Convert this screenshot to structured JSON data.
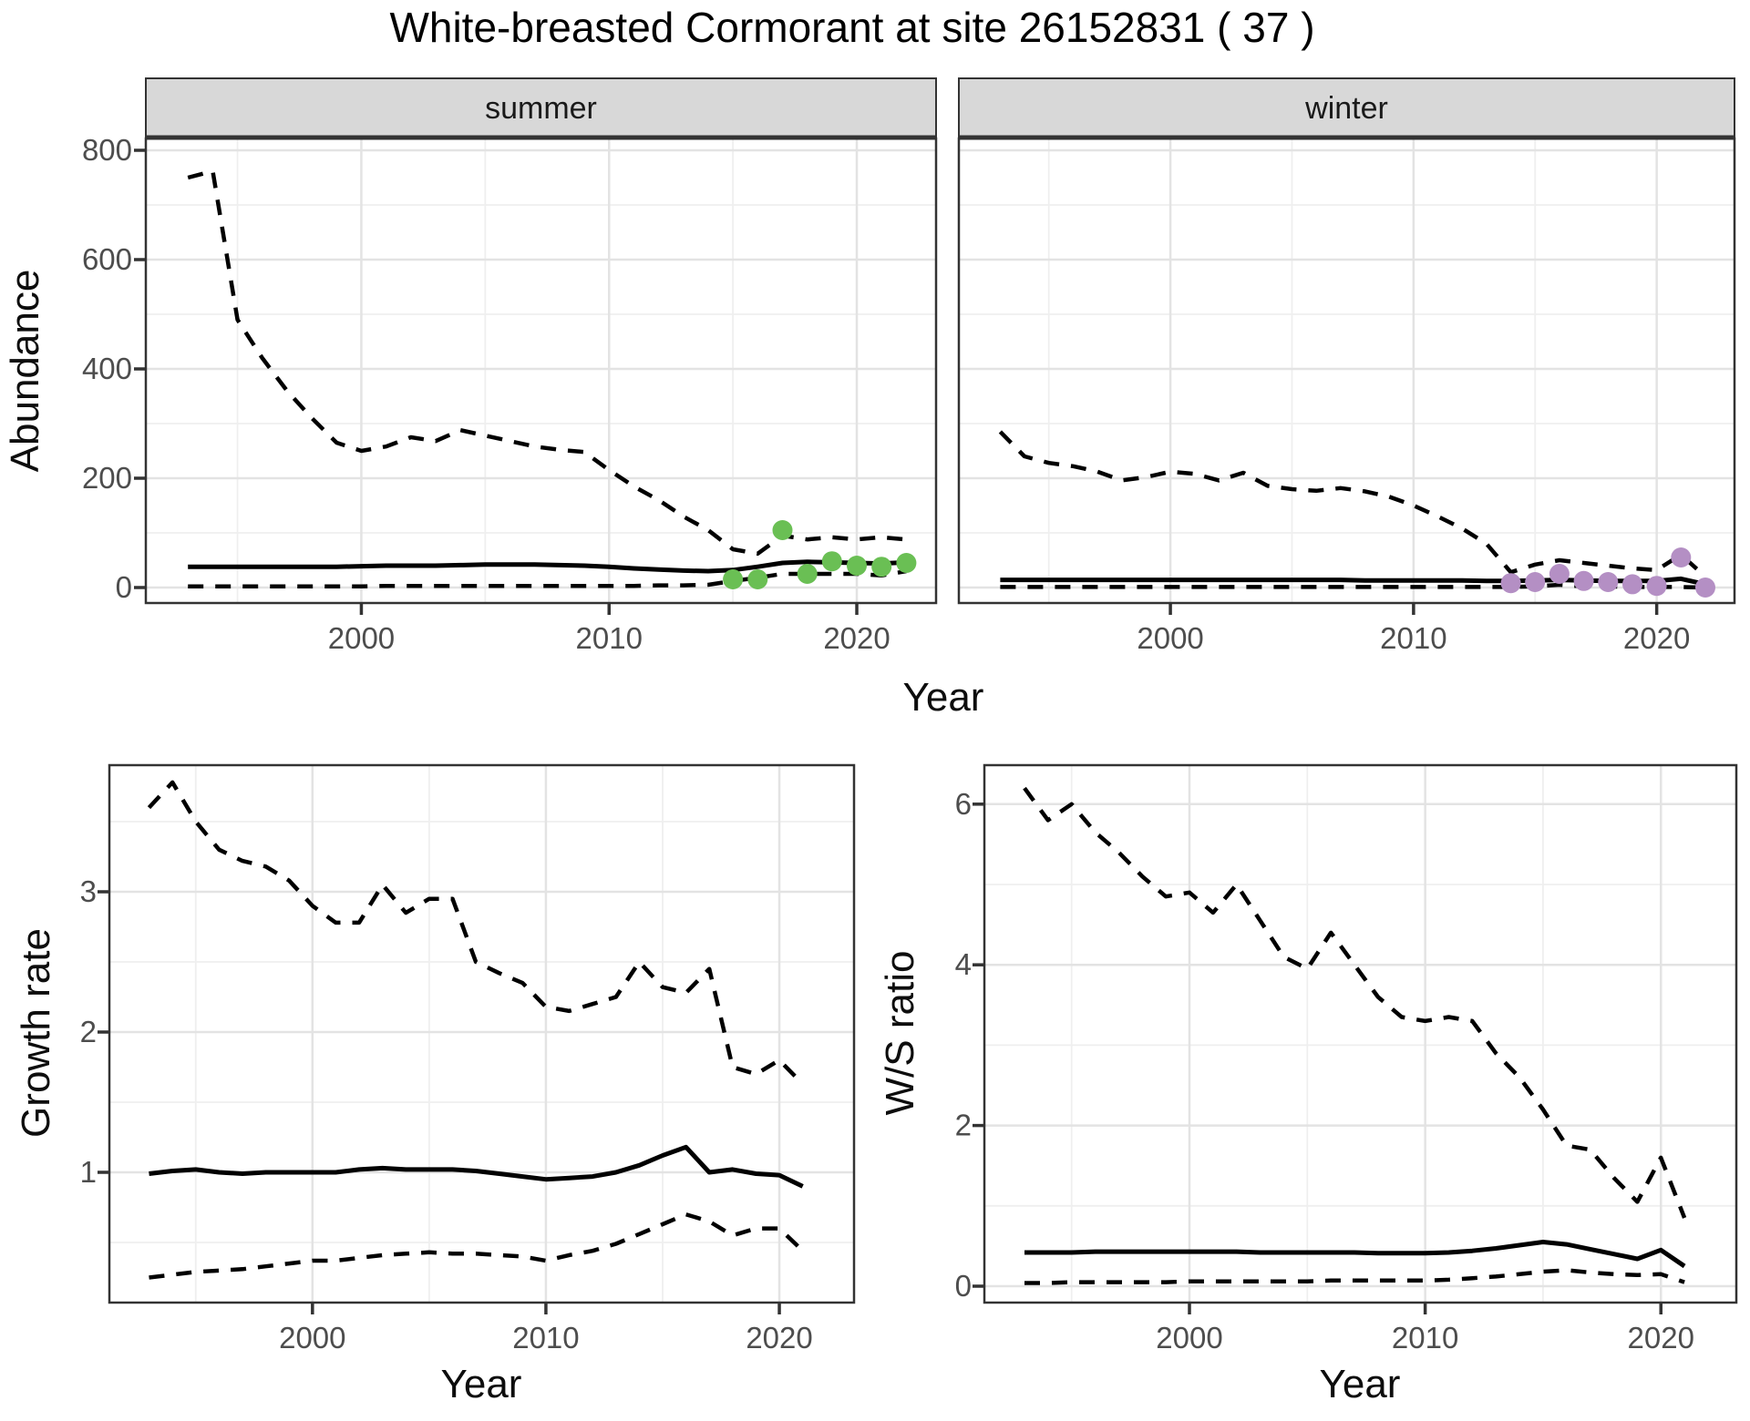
{
  "title": "White-breasted Cormorant at site 26152831 ( 37 )",
  "colors": {
    "summer_points": "#6abf54",
    "winter_points": "#b48fc4",
    "line": "#000000",
    "strip_bg": "#d8d8d8",
    "panel_border": "#333333",
    "grid_major": "#e3e3e3",
    "grid_minor": "#efefef",
    "tick_label": "#4d4d4d",
    "background": "#ffffff"
  },
  "chart_data": [
    {
      "type": "line",
      "panel": "abundance-summer",
      "facet_label": "summer",
      "xlabel": "Year",
      "ylabel": "Abundance",
      "xticks": [
        2000,
        2010,
        2020
      ],
      "yticks": [
        0,
        200,
        400,
        600,
        800
      ],
      "xlim": [
        1991.3,
        2023.2
      ],
      "ylim": [
        -28,
        822
      ],
      "grid": true,
      "legend_position": "none",
      "x": [
        1993,
        1994,
        1995,
        1996,
        1997,
        1998,
        1999,
        2000,
        2001,
        2002,
        2003,
        2004,
        2005,
        2006,
        2007,
        2008,
        2009,
        2010,
        2011,
        2012,
        2013,
        2014,
        2015,
        2016,
        2017,
        2018,
        2019,
        2020,
        2021,
        2022
      ],
      "series": [
        {
          "name": "upper 95% CI",
          "style": "dashed",
          "values": [
            750,
            762,
            490,
            420,
            360,
            310,
            265,
            250,
            258,
            275,
            268,
            288,
            278,
            268,
            258,
            252,
            248,
            215,
            185,
            160,
            130,
            105,
            70,
            62,
            95,
            88,
            92,
            88,
            92,
            88
          ]
        },
        {
          "name": "median",
          "style": "solid",
          "values": [
            38,
            38,
            38,
            38,
            38,
            38,
            38,
            39,
            40,
            40,
            40,
            41,
            42,
            42,
            42,
            41,
            40,
            38,
            35,
            33,
            31,
            30,
            32,
            38,
            45,
            47,
            46,
            45,
            44,
            46
          ]
        },
        {
          "name": "lower 95% CI",
          "style": "dashed",
          "values": [
            2,
            2,
            2,
            2,
            2,
            2,
            2,
            2,
            3,
            3,
            3,
            3,
            3,
            3,
            3,
            3,
            3,
            3,
            3,
            4,
            4,
            5,
            12,
            18,
            25,
            25,
            25,
            25,
            22,
            30
          ]
        }
      ],
      "points": {
        "name": "observed summer counts",
        "color": "#6abf54",
        "x": [
          2015,
          2016,
          2017,
          2018,
          2019,
          2020,
          2021,
          2022
        ],
        "y": [
          15,
          15,
          105,
          25,
          48,
          40,
          38,
          45
        ]
      }
    },
    {
      "type": "line",
      "panel": "abundance-winter",
      "facet_label": "winter",
      "xlabel": "Year",
      "ylabel": "Abundance",
      "xticks": [
        2000,
        2010,
        2020
      ],
      "yticks": [
        0,
        200,
        400,
        600,
        800
      ],
      "xlim": [
        1991.3,
        2023.2
      ],
      "ylim": [
        -28,
        822
      ],
      "grid": true,
      "legend_position": "none",
      "x": [
        1993,
        1994,
        1995,
        1996,
        1997,
        1998,
        1999,
        2000,
        2001,
        2002,
        2003,
        2004,
        2005,
        2006,
        2007,
        2008,
        2009,
        2010,
        2011,
        2012,
        2013,
        2014,
        2015,
        2016,
        2017,
        2018,
        2019,
        2020,
        2021,
        2022
      ],
      "series": [
        {
          "name": "upper 95% CI",
          "style": "dashed",
          "values": [
            285,
            240,
            228,
            222,
            212,
            196,
            202,
            212,
            208,
            196,
            210,
            186,
            180,
            177,
            182,
            176,
            166,
            150,
            130,
            108,
            80,
            28,
            42,
            50,
            45,
            40,
            35,
            32,
            60,
            20
          ]
        },
        {
          "name": "median",
          "style": "solid",
          "values": [
            14,
            14,
            14,
            14,
            14,
            14,
            14,
            14,
            14,
            14,
            14,
            14,
            14,
            14,
            14,
            13,
            13,
            13,
            13,
            13,
            12,
            12,
            13,
            14,
            13,
            12,
            12,
            12,
            16,
            6
          ]
        },
        {
          "name": "lower 95% CI",
          "style": "dashed",
          "values": [
            1,
            1,
            1,
            1,
            1,
            1,
            1,
            1,
            1,
            1,
            1,
            1,
            1,
            1,
            1,
            1,
            1,
            1,
            1,
            1,
            1,
            1,
            2,
            5,
            2,
            2,
            1,
            1,
            1,
            0
          ]
        }
      ],
      "points": {
        "name": "observed winter counts",
        "color": "#b48fc4",
        "x": [
          2014,
          2015,
          2016,
          2017,
          2018,
          2019,
          2020,
          2021,
          2022
        ],
        "y": [
          8,
          10,
          25,
          12,
          10,
          6,
          3,
          55,
          0
        ]
      }
    },
    {
      "type": "line",
      "panel": "growth-rate",
      "facet_label": "",
      "xlabel": "Year",
      "ylabel": "Growth rate",
      "xticks": [
        2000,
        2010,
        2020
      ],
      "yticks": [
        1,
        2,
        3
      ],
      "xlim": [
        1991.3,
        2023.2
      ],
      "ylim": [
        0.07,
        3.9
      ],
      "grid": true,
      "legend_position": "none",
      "x": [
        1993,
        1994,
        1995,
        1996,
        1997,
        1998,
        1999,
        2000,
        2001,
        2002,
        2003,
        2004,
        2005,
        2006,
        2007,
        2008,
        2009,
        2010,
        2011,
        2012,
        2013,
        2014,
        2015,
        2016,
        2017,
        2018,
        2019,
        2020,
        2021
      ],
      "series": [
        {
          "name": "upper 95% CI",
          "style": "dashed",
          "values": [
            3.6,
            3.78,
            3.5,
            3.3,
            3.22,
            3.18,
            3.08,
            2.9,
            2.78,
            2.78,
            3.05,
            2.85,
            2.95,
            2.95,
            2.5,
            2.42,
            2.35,
            2.18,
            2.15,
            2.2,
            2.25,
            2.5,
            2.32,
            2.28,
            2.45,
            1.75,
            1.7,
            1.8,
            1.63
          ]
        },
        {
          "name": "median",
          "style": "solid",
          "values": [
            0.99,
            1.01,
            1.02,
            1.0,
            0.99,
            1.0,
            1.0,
            1.0,
            1.0,
            1.02,
            1.03,
            1.02,
            1.02,
            1.02,
            1.01,
            0.99,
            0.97,
            0.95,
            0.96,
            0.97,
            1.0,
            1.05,
            1.12,
            1.18,
            1.0,
            1.02,
            0.99,
            0.98,
            0.9
          ]
        },
        {
          "name": "lower 95% CI",
          "style": "dashed",
          "values": [
            0.25,
            0.27,
            0.29,
            0.3,
            0.31,
            0.33,
            0.35,
            0.37,
            0.37,
            0.39,
            0.41,
            0.42,
            0.43,
            0.42,
            0.42,
            0.41,
            0.4,
            0.37,
            0.41,
            0.44,
            0.49,
            0.56,
            0.63,
            0.7,
            0.65,
            0.55,
            0.6,
            0.6,
            0.44
          ]
        }
      ],
      "points": null
    },
    {
      "type": "line",
      "panel": "ws-ratio",
      "facet_label": "",
      "xlabel": "Year",
      "ylabel": "W/S ratio",
      "xticks": [
        2000,
        2010,
        2020
      ],
      "yticks": [
        0,
        2,
        4,
        6
      ],
      "xlim": [
        1991.3,
        2023.2
      ],
      "ylim": [
        -0.2,
        6.48
      ],
      "grid": true,
      "legend_position": "none",
      "x": [
        1993,
        1994,
        1995,
        1996,
        1997,
        1998,
        1999,
        2000,
        2001,
        2002,
        2003,
        2004,
        2005,
        2006,
        2007,
        2008,
        2009,
        2010,
        2011,
        2012,
        2013,
        2014,
        2015,
        2016,
        2017,
        2018,
        2019,
        2020,
        2021
      ],
      "series": [
        {
          "name": "upper 95% CI",
          "style": "dashed",
          "values": [
            6.2,
            5.8,
            6.0,
            5.65,
            5.4,
            5.1,
            4.85,
            4.9,
            4.65,
            5.0,
            4.55,
            4.1,
            3.95,
            4.4,
            4.0,
            3.6,
            3.35,
            3.3,
            3.35,
            3.3,
            2.9,
            2.6,
            2.2,
            1.75,
            1.7,
            1.35,
            1.05,
            1.6,
            0.85
          ]
        },
        {
          "name": "median",
          "style": "solid",
          "values": [
            0.42,
            0.42,
            0.42,
            0.43,
            0.43,
            0.43,
            0.43,
            0.43,
            0.43,
            0.43,
            0.42,
            0.42,
            0.42,
            0.42,
            0.42,
            0.41,
            0.41,
            0.41,
            0.42,
            0.44,
            0.47,
            0.51,
            0.55,
            0.52,
            0.46,
            0.4,
            0.34,
            0.45,
            0.25
          ]
        },
        {
          "name": "lower 95% CI",
          "style": "dashed",
          "values": [
            0.04,
            0.04,
            0.05,
            0.05,
            0.05,
            0.05,
            0.05,
            0.06,
            0.06,
            0.06,
            0.06,
            0.06,
            0.06,
            0.07,
            0.07,
            0.07,
            0.07,
            0.07,
            0.08,
            0.1,
            0.12,
            0.15,
            0.18,
            0.2,
            0.17,
            0.15,
            0.14,
            0.15,
            0.05
          ]
        }
      ],
      "points": null
    }
  ]
}
